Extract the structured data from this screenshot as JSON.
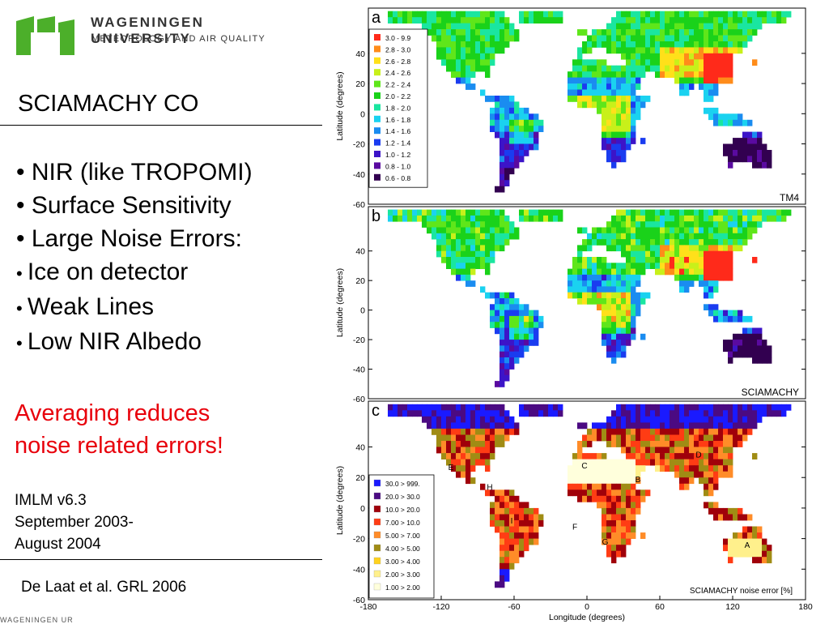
{
  "logo": {
    "university": "WAGENINGEN UNIVERSITY",
    "department": "METEOROLOGY AND AIR QUALITY",
    "brand_green": "#4caf2a"
  },
  "title": "SCIAMACHY CO",
  "bullets": [
    {
      "label": "NIR (like TROPOMI)"
    },
    {
      "label": "Surface Sensitivity"
    },
    {
      "label": "Large Noise Errors:"
    },
    {
      "label": "Ice on detector"
    },
    {
      "label": "Weak Lines"
    },
    {
      "label": "Low NIR Albedo"
    }
  ],
  "highlight": {
    "line1": "Averaging reduces",
    "line2": "noise related errors!",
    "color": "#e8000b"
  },
  "info": {
    "line1": "IMLM v6.3",
    "line2": "September 2003-",
    "line3": "August 2004"
  },
  "reference": "De Laat et al. GRL 2006",
  "footer": "WAGENINGEN UR",
  "chart_data": [
    {
      "type": "heatmap",
      "panel": "a",
      "model_label": "TM4",
      "ylabel": "Latitude (degrees)",
      "yticks": [
        "40",
        "20",
        "0",
        "-20",
        "-40",
        "-60"
      ],
      "ylim": [
        -60,
        70
      ],
      "xlim": [
        -180,
        180
      ],
      "legend": [
        {
          "label": "3.0 - 9.9",
          "color": "#ff2a1a"
        },
        {
          "label": "2.8 - 3.0",
          "color": "#ff8c1a"
        },
        {
          "label": "2.6 - 2.8",
          "color": "#ffe01a"
        },
        {
          "label": "2.4 - 2.6",
          "color": "#c8f01a"
        },
        {
          "label": "2.2 - 2.4",
          "color": "#5fe61a"
        },
        {
          "label": "2.0 - 2.2",
          "color": "#1ad21a"
        },
        {
          "label": "1.8 - 2.0",
          "color": "#1ae6a0"
        },
        {
          "label": "1.6 - 1.8",
          "color": "#1ad2f0"
        },
        {
          "label": "1.4 - 1.6",
          "color": "#1a8cf0"
        },
        {
          "label": "1.2 - 1.4",
          "color": "#1a3cf0"
        },
        {
          "label": "1.0 - 1.2",
          "color": "#3c14c8"
        },
        {
          "label": "0.8 - 1.0",
          "color": "#5a0aa0"
        },
        {
          "label": "0.6 - 0.8",
          "color": "#320050"
        }
      ]
    },
    {
      "type": "heatmap",
      "panel": "b",
      "model_label": "SCIAMACHY",
      "ylabel": "Latitude (degrees)",
      "yticks": [
        "40",
        "20",
        "0",
        "-20",
        "-40",
        "-60"
      ],
      "ylim": [
        -60,
        70
      ],
      "xlim": [
        -180,
        180
      ]
    },
    {
      "type": "heatmap",
      "panel": "c",
      "ylabel": "Latitude (degrees)",
      "xlabel": "Longitude (degrees)",
      "yticks": [
        "40",
        "20",
        "0",
        "-20",
        "-40",
        "-60"
      ],
      "xticks": [
        "-180",
        "-120",
        "-60",
        "0",
        "60",
        "120",
        "180"
      ],
      "ylim": [
        -60,
        70
      ],
      "xlim": [
        -180,
        180
      ],
      "caption": "SCIAMACHY noise error [%]",
      "region_labels": [
        "A",
        "B",
        "C",
        "D",
        "E",
        "F",
        "G",
        "H",
        "I"
      ],
      "legend": [
        {
          "label": "30.0 > 999.",
          "color": "#1a1aff"
        },
        {
          "label": "20.0 > 30.0",
          "color": "#4b0a82"
        },
        {
          "label": "10.0 > 20.0",
          "color": "#a0000a"
        },
        {
          "label": "7.00 > 10.0",
          "color": "#ff3c14"
        },
        {
          "label": "5.00 > 7.00",
          "color": "#ff8c28"
        },
        {
          "label": "4.00 > 5.00",
          "color": "#a08c14"
        },
        {
          "label": "3.00 > 4.00",
          "color": "#ffd21e"
        },
        {
          "label": "2.00 > 3.00",
          "color": "#fff08c"
        },
        {
          "label": "1.00 > 2.00",
          "color": "#ffffdc"
        }
      ]
    }
  ]
}
